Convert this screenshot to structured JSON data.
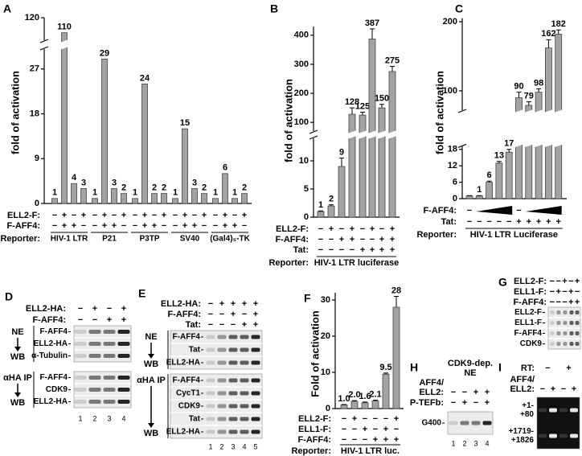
{
  "chart_data": [
    {
      "type": "bar",
      "panel": "A",
      "y_label": "fold of activation",
      "color": "#a3a3a3",
      "values": [
        1,
        110,
        4,
        3,
        1,
        29,
        3,
        2,
        1,
        24,
        2,
        2,
        1,
        15,
        3,
        2,
        1,
        6,
        1,
        2
      ],
      "ylim": [
        0,
        120
      ],
      "yticks": [
        0,
        9,
        18,
        27,
        120
      ],
      "axis_break": [
        31,
        105
      ],
      "conditions": [
        {
          "name": "ELL2-F:",
          "signs": [
            "−",
            "+",
            "−",
            "+",
            "−",
            "+",
            "−",
            "+",
            "−",
            "+",
            "−",
            "+",
            "−",
            "+",
            "−",
            "+",
            "−",
            "+",
            "−",
            "+"
          ]
        },
        {
          "name": "F-AFF4:",
          "signs": [
            "−",
            "+",
            "+",
            "−",
            "−",
            "+",
            "+",
            "−",
            "−",
            "+",
            "+",
            "−",
            "−",
            "+",
            "+",
            "−",
            "−",
            "+",
            "+",
            "−"
          ]
        }
      ],
      "group_title": "Reporter:",
      "groups": [
        "HIV-1 LTR",
        "P21",
        "P3TP",
        "SV40",
        "(Gal4)₅-TK"
      ]
    },
    {
      "type": "bar",
      "panel": "B",
      "y_label": "fold of activation",
      "color": "#a3a3a3",
      "values": [
        1,
        2,
        9,
        128,
        125,
        387,
        150,
        275
      ],
      "errors": [
        0.1,
        0.2,
        1.5,
        22,
        10,
        35,
        12,
        18
      ],
      "ylim": [
        0,
        430
      ],
      "yticks": [
        0,
        5,
        10,
        100,
        200,
        300,
        400
      ],
      "axis_break": [
        14,
        70
      ],
      "conditions": [
        {
          "name": "ELL2-F:",
          "signs": [
            "−",
            "+",
            "−",
            "+",
            "−",
            "+",
            "−",
            "+"
          ]
        },
        {
          "name": "F-AFF4:",
          "signs": [
            "−",
            "−",
            "+",
            "+",
            "−",
            "−",
            "+",
            "+"
          ]
        },
        {
          "name": "Tat:",
          "signs": [
            "−",
            "−",
            "−",
            "−",
            "+",
            "+",
            "+",
            "+"
          ]
        }
      ],
      "group_title": "Reporter:",
      "groups": [
        "HIV-1 LTR luciferase"
      ]
    },
    {
      "type": "bar",
      "panel": "C",
      "y_label": "fold of activation",
      "color": "#a3a3a3",
      "values": [
        1,
        1,
        6,
        13,
        17,
        90,
        79,
        98,
        162,
        182
      ],
      "errors": [
        0.1,
        0.1,
        0.4,
        0.6,
        1.0,
        8,
        5,
        5,
        12,
        6
      ],
      "value_labels": [
        null,
        "1",
        "6",
        "13",
        "17",
        "90",
        "79",
        "98",
        "162",
        "182"
      ],
      "ylim": [
        0,
        205
      ],
      "yticks": [
        0,
        6,
        12,
        18,
        100,
        200
      ],
      "axis_break": [
        19,
        72
      ],
      "conditions": [
        {
          "name": "F-AFF4:",
          "signs": [
            "−",
            null,
            null,
            null,
            null,
            "−",
            null,
            null,
            null,
            null
          ]
        },
        {
          "name": "Tat:",
          "signs": [
            "−",
            "−",
            "−",
            "−",
            "−",
            "+",
            "+",
            "+",
            "+",
            "+"
          ]
        }
      ],
      "group_title": "Reporter:",
      "groups": [
        "HIV-1 LTR Luciferase"
      ]
    },
    {
      "type": "bar",
      "panel": "F",
      "y_label": "Fold of activation",
      "color": "#a3a3a3",
      "values": [
        1.0,
        2.0,
        1.6,
        2.1,
        9.5,
        28
      ],
      "errors": [
        0.1,
        0.2,
        0.2,
        0.2,
        0.3,
        3
      ],
      "value_labels": [
        "1.0",
        "2.0",
        "1.6",
        "2.1",
        "9.5",
        "28"
      ],
      "ylim": [
        0,
        32
      ],
      "yticks": [
        0,
        10,
        20,
        30
      ],
      "conditions": [
        {
          "name": "ELL2-F:",
          "signs": [
            "−",
            "+",
            "−",
            "−",
            "−",
            "+"
          ]
        },
        {
          "name": "ELL1-F:",
          "signs": [
            "−",
            "−",
            "+",
            "−",
            "+",
            "−"
          ]
        },
        {
          "name": "F-AFF4:",
          "signs": [
            "−",
            "−",
            "−",
            "+",
            "+",
            "+"
          ]
        }
      ],
      "group_title": "Reporter:",
      "groups": [
        "HIV-1 LTR luc."
      ]
    }
  ],
  "blots": [
    {
      "panel": "D",
      "conditions": [
        {
          "name": [
            "ELL2-HA:"
          ],
          "signs": [
            "−",
            "+",
            "−",
            "+"
          ]
        },
        {
          "name": [
            "F-AFF4:"
          ],
          "signs": [
            "−",
            "−",
            "+",
            "+"
          ]
        }
      ],
      "sections": [
        {
          "labels": [
            "NE",
            "WB"
          ],
          "bands": [
            "F-AFF4",
            "ELL2-HA",
            "α-Tubulin"
          ]
        },
        {
          "labels": [
            "αHA IP",
            "WB"
          ],
          "bands": [
            "F-AFF4",
            "CDK9",
            "ELL2-HA"
          ]
        }
      ],
      "lanes": [
        "1",
        "2",
        "3",
        "4"
      ]
    },
    {
      "panel": "E",
      "conditions": [
        {
          "name": [
            "ELL2-HA:"
          ],
          "signs": [
            "−",
            "+",
            "+",
            "+",
            "+"
          ]
        },
        {
          "name": [
            "F-AFF4:"
          ],
          "signs": [
            "−",
            "−",
            "+",
            "−",
            "+"
          ]
        },
        {
          "name": [
            "Tat:"
          ],
          "signs": [
            "−",
            "−",
            "−",
            "+",
            "+"
          ]
        }
      ],
      "sections": [
        {
          "labels": [
            "NE",
            "WB"
          ],
          "bands": [
            "F-AFF4",
            "Tat",
            "ELL2-HA"
          ]
        },
        {
          "labels": [
            "αHA IP",
            "WB"
          ],
          "bands": [
            "F-AFF4",
            "CycT1",
            "CDK9",
            "Tat",
            "ELL2-HA"
          ]
        }
      ],
      "lanes": [
        "1",
        "2",
        "3",
        "4",
        "5"
      ]
    },
    {
      "panel": "G",
      "conditions": [
        {
          "name": [
            "ELL2-F:"
          ],
          "signs": [
            "−",
            "−",
            "+",
            "−",
            "+"
          ]
        },
        {
          "name": [
            "ELL1-F:"
          ],
          "signs": [
            "−",
            "+",
            "−",
            "+",
            "−"
          ]
        },
        {
          "name": [
            "F-AFF4:"
          ],
          "signs": [
            "−",
            "−",
            "−",
            "+",
            "+"
          ]
        }
      ],
      "sections": [
        {
          "bands": [
            "ELL2-F",
            "ELL1-F",
            "F-AFF4",
            "CDK9"
          ]
        }
      ]
    },
    {
      "panel": "H",
      "header": [
        "CDK9-dep.",
        "NE"
      ],
      "conditions": [
        {
          "name": [
            "AFF4/",
            "ELL2:"
          ],
          "signs": [
            "−",
            "−",
            "+",
            "+"
          ]
        },
        {
          "name": [
            "P-TEFb:"
          ],
          "signs": [
            "−",
            "+",
            "−",
            "+"
          ]
        }
      ],
      "sections": [
        {
          "bands": [
            "G400"
          ]
        }
      ],
      "lanes": [
        "1",
        "2",
        "3",
        "4"
      ]
    },
    {
      "panel": "I",
      "dark": true,
      "conditions": [
        {
          "name": [
            "RT:"
          ],
          "signs": [
            "−",
            "+"
          ]
        },
        {
          "name": [
            "AFF4/",
            "ELL2:"
          ],
          "signs": [
            "−",
            "+",
            "−",
            "+"
          ]
        }
      ],
      "sections": [
        {
          "bands": [
            [
              "+1-",
              "+80"
            ],
            [
              "+1719-",
              "+1826"
            ]
          ]
        }
      ]
    }
  ]
}
